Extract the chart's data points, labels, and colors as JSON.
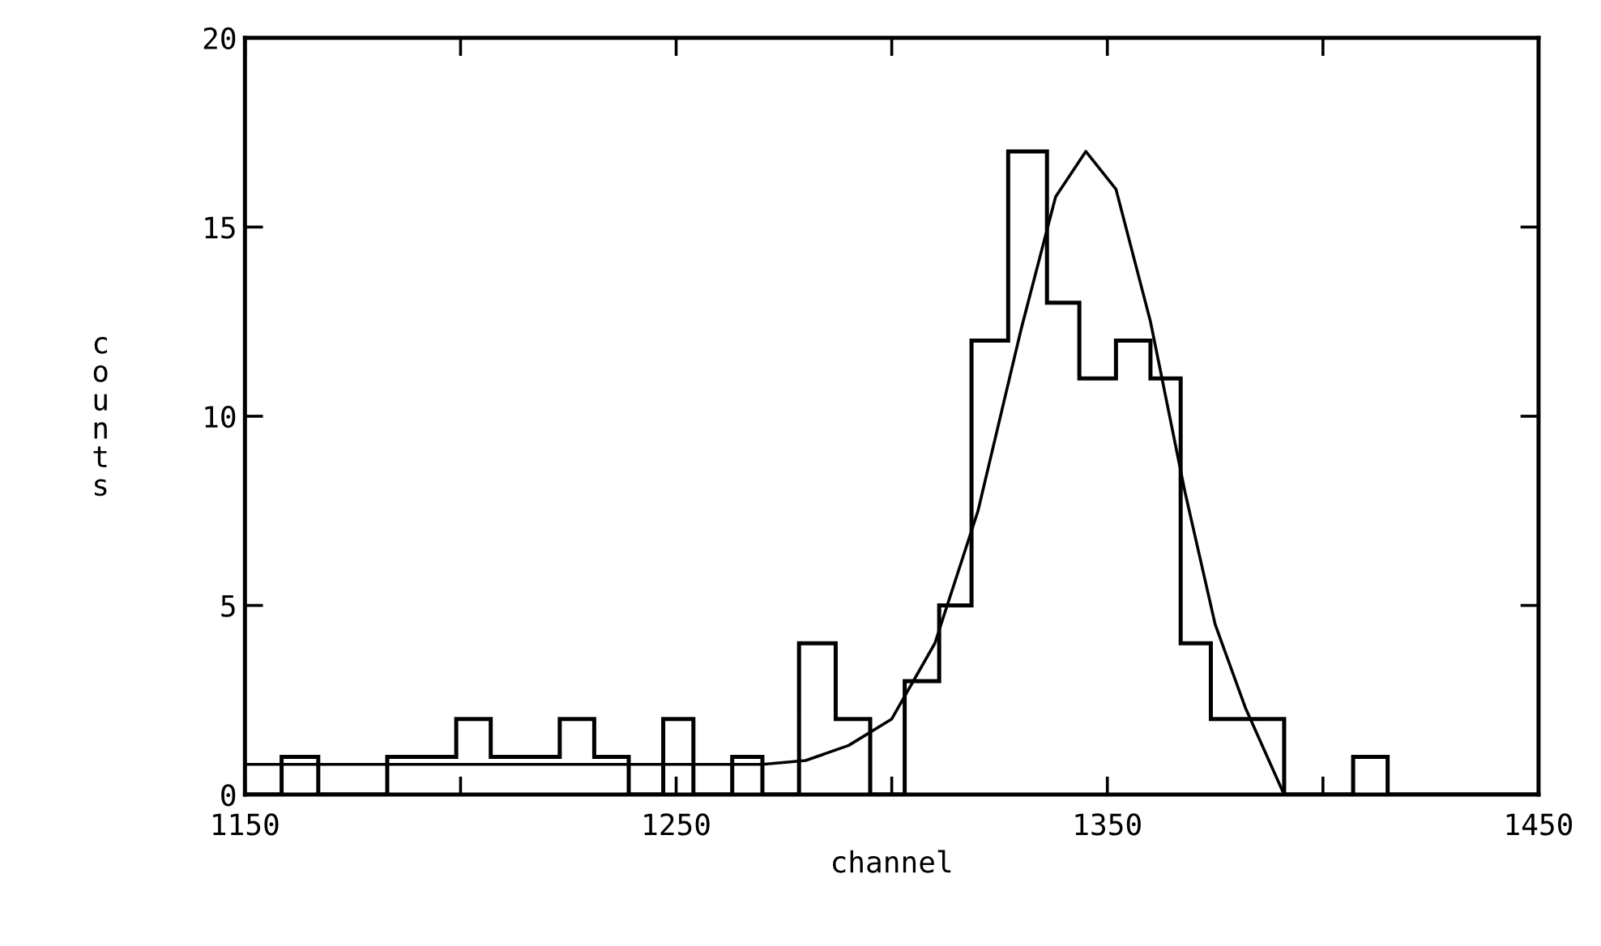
{
  "chart_data": {
    "type": "histogram",
    "xlabel": "channel",
    "ylabel": "counts",
    "xlim": [
      1150,
      1450
    ],
    "ylim": [
      0,
      20
    ],
    "xticks": [
      1150,
      {
        "value": 1200,
        "label": null
      },
      1250,
      {
        "value": 1300,
        "label": null
      },
      1350,
      {
        "value": 1400,
        "label": null
      },
      1450
    ],
    "yticks": [
      0,
      5,
      10,
      15,
      20
    ],
    "grid": false,
    "legend": false,
    "series": [
      {
        "color": "#000000",
        "bins": [
          1150,
          1158.5,
          1167,
          1183,
          1199,
          1207,
          1223,
          1231,
          1239,
          1247,
          1254,
          1263,
          1270,
          1278.5,
          1287,
          1295,
          1303,
          1311,
          1318.5,
          1327,
          1336,
          1343.5,
          1352,
          1360,
          1367,
          1374,
          1382,
          1391,
          1407,
          1415,
          1450
        ],
        "values": [
          0,
          1,
          0,
          1,
          2,
          1,
          2,
          1,
          0,
          2,
          0,
          1,
          0,
          4,
          2,
          0,
          3,
          5,
          12,
          17,
          13,
          11,
          12,
          11,
          4,
          2,
          2,
          0,
          1,
          0
        ]
      },
      {
        "type": "line",
        "color": "#000000",
        "x": [
          1150,
          1200,
          1250,
          1270,
          1280,
          1290,
          1300,
          1310,
          1320,
          1330,
          1338,
          1345,
          1352,
          1360,
          1368,
          1375,
          1382,
          1391
        ],
        "values": [
          0.8,
          0.8,
          0.8,
          0.8,
          0.9,
          1.3,
          2.0,
          4.0,
          7.5,
          12.3,
          15.8,
          17.0,
          16.0,
          12.5,
          8.0,
          4.5,
          2.3,
          0
        ]
      }
    ]
  }
}
